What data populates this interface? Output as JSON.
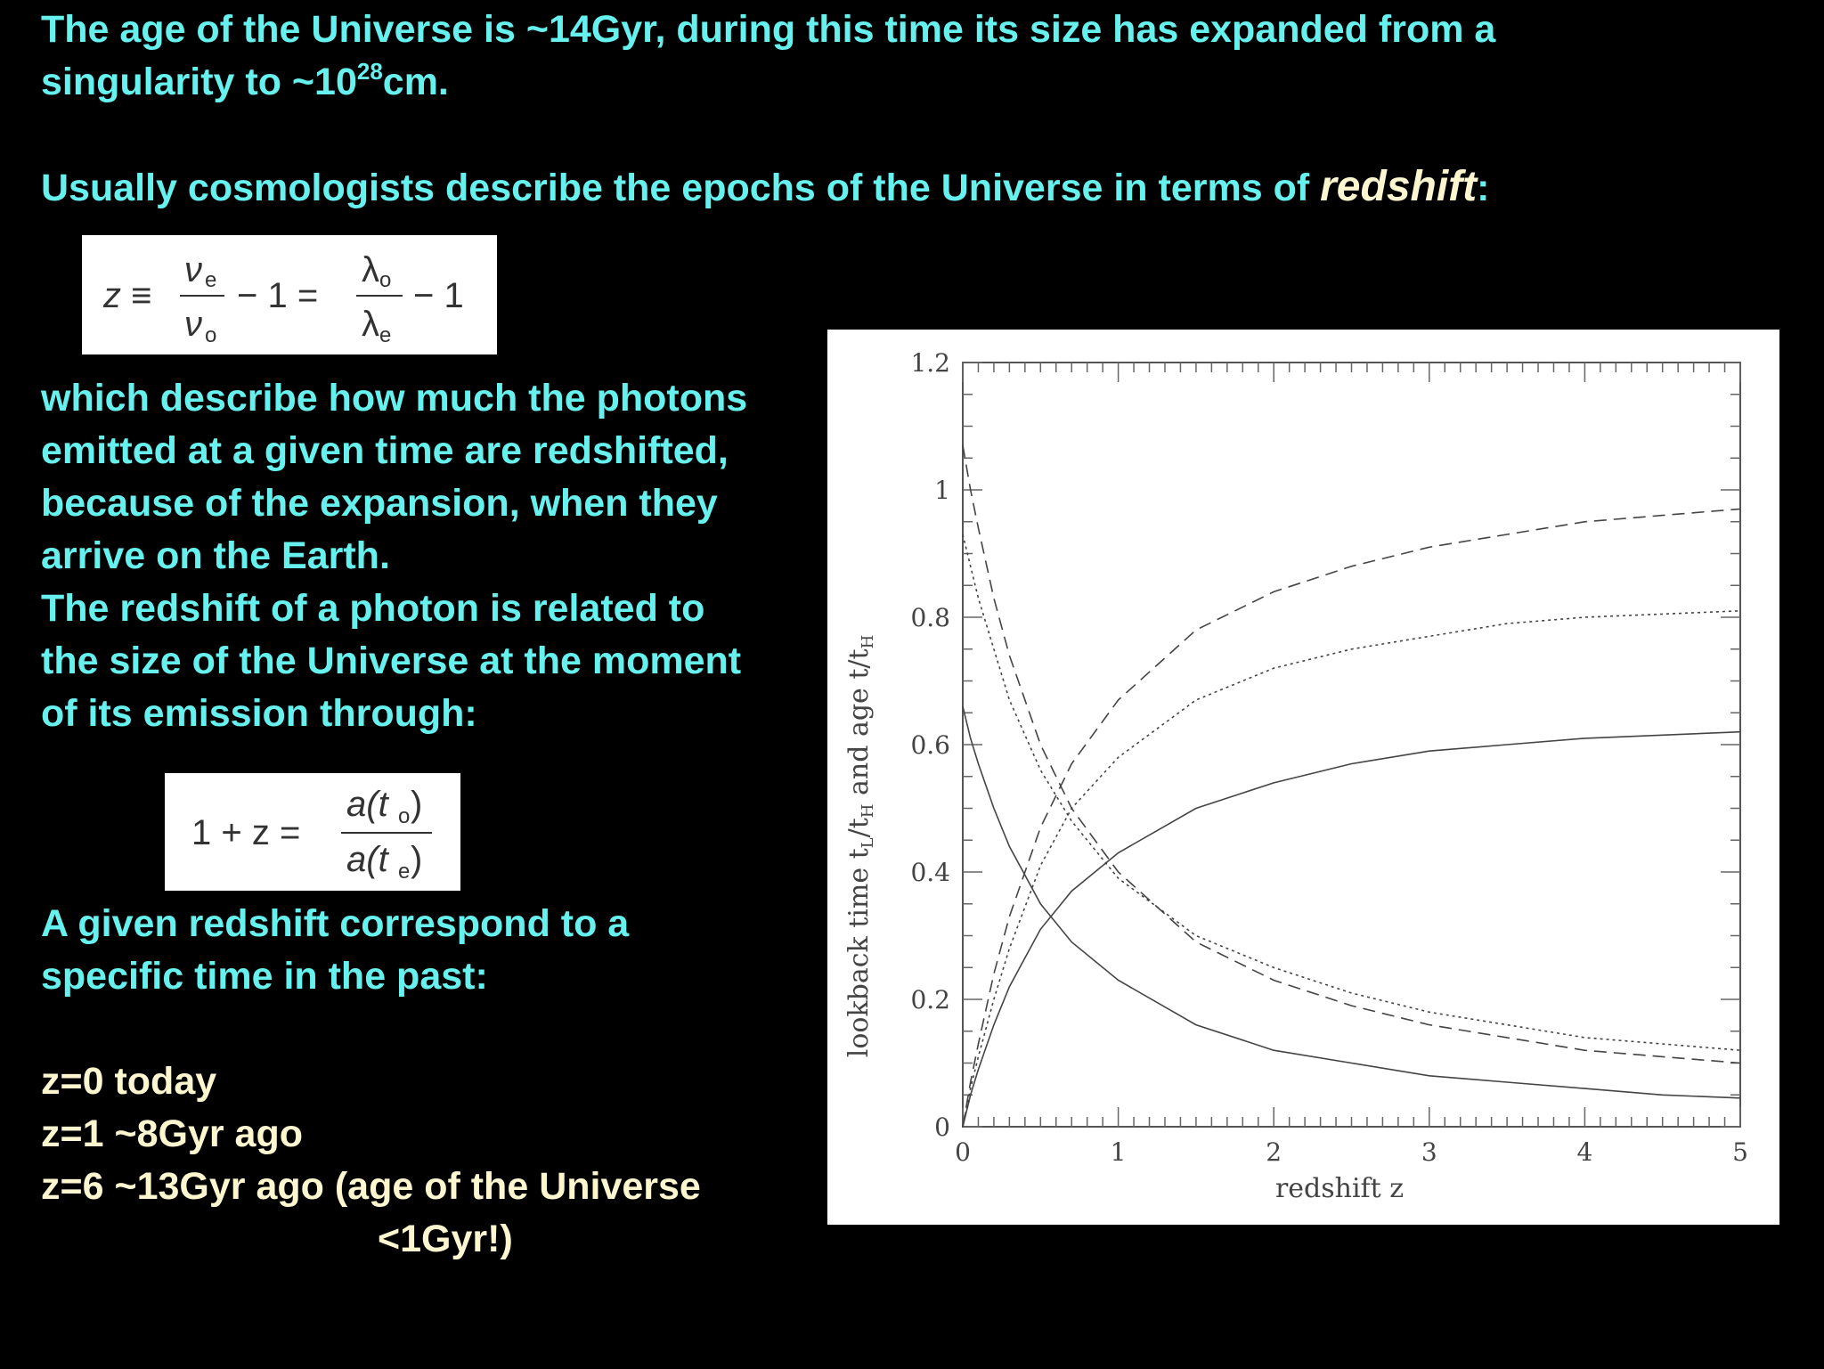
{
  "intro": {
    "line1": "The age of the Universe is ~14Gyr, during this time its size has expanded from a",
    "line2_before": "singularity to ~10",
    "line2_sup": "28",
    "line2_after": "cm."
  },
  "redshift_intro": {
    "before": "Usually cosmologists describe the epochs of the Universe in terms of ",
    "highlight": "redshift",
    "after": ":"
  },
  "equation1": {
    "lhs": "z ≡",
    "nu_e": "ν",
    "sub_e": "e",
    "nu_o": "ν",
    "sub_o": "o",
    "minus_one_eq": "− 1 =",
    "lambda_o": "λ",
    "lambda_e": "λ",
    "minus_one": "− 1"
  },
  "explanation": [
    "which describe how much the photons",
    "emitted at a given time are redshifted,",
    "because of the expansion, when they",
    "arrive on the Earth.",
    "The redshift of a photon is related to",
    "the size of the Universe at the moment",
    "of its emission through:"
  ],
  "equation2": {
    "lhs": "1 + z =",
    "numerator": "a(t",
    "numerator_sub": "o",
    "denominator": "a(t",
    "denominator_sub": "e",
    "close": ")"
  },
  "given_redshift": [
    "A given redshift correspond to a",
    "specific time in the past:"
  ],
  "examples": [
    "z=0 today",
    "z=1 ~8Gyr ago",
    "z=6 ~13Gyr ago (age of the Universe",
    "<1Gyr!)"
  ],
  "colors": {
    "cyan_text": "#66f0ee",
    "cream_text": "#fdf6cf",
    "background": "#000000"
  },
  "chart_data": {
    "type": "line",
    "xlabel": "redshift  z",
    "ylabel": "lookback time  t",
    "ylabel_sub1": "L",
    "ylabel_mid": "/t",
    "ylabel_sub2": "H",
    "ylabel_end": "  and age  t/t",
    "ylabel_sub3": "H",
    "xlim": [
      0,
      5
    ],
    "ylim": [
      0,
      1.2
    ],
    "x_ticks": [
      "0",
      "1",
      "2",
      "3",
      "4",
      "5"
    ],
    "y_ticks": [
      "0",
      "0.2",
      "0.4",
      "0.6",
      "0.8",
      "1",
      "1.2"
    ],
    "x": [
      0,
      0.05,
      0.1,
      0.2,
      0.3,
      0.5,
      0.7,
      1,
      1.5,
      2,
      2.5,
      3,
      3.5,
      4,
      4.5,
      5
    ],
    "series": [
      {
        "values": [
          0,
          0.05,
          0.09,
          0.16,
          0.22,
          0.31,
          0.37,
          0.43,
          0.5,
          0.54,
          0.57,
          0.59,
          0.6,
          0.61,
          0.615,
          0.62
        ],
        "style": "solid"
      },
      {
        "values": [
          0.66,
          0.61,
          0.57,
          0.5,
          0.44,
          0.35,
          0.29,
          0.23,
          0.16,
          0.12,
          0.1,
          0.08,
          0.07,
          0.06,
          0.05,
          0.045
        ],
        "style": "solid"
      },
      {
        "values": [
          0,
          0.07,
          0.13,
          0.24,
          0.33,
          0.47,
          0.57,
          0.67,
          0.78,
          0.84,
          0.88,
          0.91,
          0.93,
          0.95,
          0.96,
          0.97
        ],
        "style": "dashed"
      },
      {
        "values": [
          1.07,
          1.0,
          0.94,
          0.83,
          0.74,
          0.6,
          0.5,
          0.4,
          0.29,
          0.23,
          0.19,
          0.16,
          0.14,
          0.12,
          0.11,
          0.1
        ],
        "style": "dashed"
      },
      {
        "values": [
          0,
          0.06,
          0.11,
          0.2,
          0.28,
          0.41,
          0.5,
          0.58,
          0.67,
          0.72,
          0.75,
          0.77,
          0.79,
          0.8,
          0.805,
          0.81
        ],
        "style": "dotted"
      },
      {
        "values": [
          0.93,
          0.88,
          0.83,
          0.75,
          0.67,
          0.56,
          0.48,
          0.39,
          0.3,
          0.25,
          0.21,
          0.18,
          0.16,
          0.14,
          0.13,
          0.12
        ],
        "style": "dotted"
      }
    ]
  }
}
